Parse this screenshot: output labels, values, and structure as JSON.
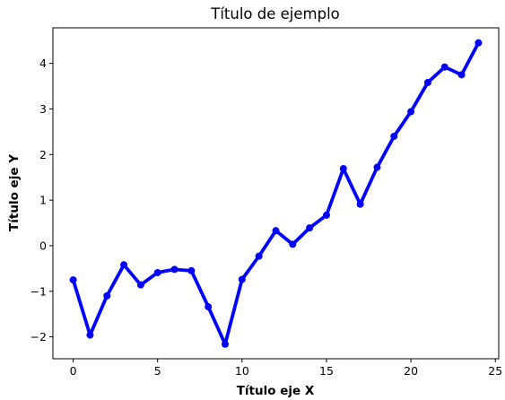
{
  "chart_data": {
    "type": "line",
    "title": "Título de ejemplo",
    "xlabel": "Título eje X",
    "ylabel": "Título eje Y",
    "xlim": [
      -1.2,
      25.2
    ],
    "ylim": [
      -2.48,
      4.78
    ],
    "xticks": [
      0,
      5,
      10,
      15,
      20,
      25
    ],
    "yticks": [
      -2,
      -1,
      0,
      1,
      2,
      3,
      4
    ],
    "ytick_labels": [
      "−2",
      "−1",
      "0",
      "1",
      "2",
      "3",
      "4"
    ],
    "grid": false,
    "series": [
      {
        "color": "#0000ff",
        "marker": "circle",
        "x": [
          0,
          1,
          2,
          3,
          4,
          5,
          6,
          7,
          8,
          9,
          10,
          11,
          12,
          13,
          14,
          15,
          16,
          17,
          18,
          19,
          20,
          21,
          22,
          23,
          24
        ],
        "y": [
          -0.75,
          -1.96,
          -1.1,
          -0.42,
          -0.86,
          -0.59,
          -0.52,
          -0.55,
          -1.34,
          -2.16,
          -0.74,
          -0.23,
          0.33,
          0.03,
          0.39,
          0.67,
          1.69,
          0.91,
          1.72,
          2.4,
          2.94,
          3.58,
          3.92,
          3.75,
          4.45
        ]
      }
    ]
  }
}
